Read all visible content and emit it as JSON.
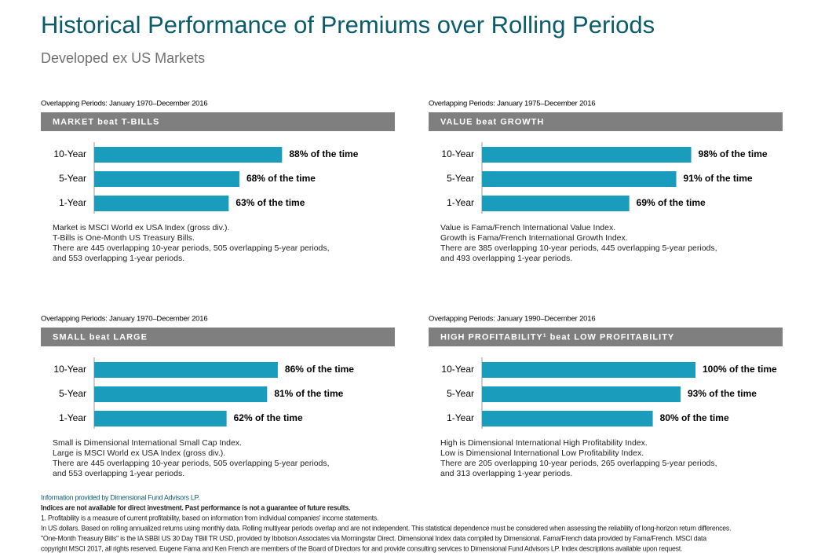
{
  "title": "Historical Performance of Premiums over Rolling Periods",
  "subtitle": "Developed ex US Markets",
  "chart_data": [
    {
      "type": "bar",
      "period": "Overlapping Periods: January 1970–December 2016",
      "title": "MARKET beat T-BILLS",
      "categories": [
        "10-Year",
        "5-Year",
        "1-Year"
      ],
      "values": [
        88,
        68,
        63
      ],
      "value_labels": [
        "88% of the time",
        "68% of the time",
        "63% of the time"
      ],
      "color": "#1a9dbd",
      "notes": [
        "Market is MSCI World ex USA Index (gross div.).",
        "T-Bills is One-Month US Treasury Bills.",
        "There are 445 overlapping 10-year periods, 505 overlapping 5-year periods,",
        "and 553 overlapping 1-year periods."
      ]
    },
    {
      "type": "bar",
      "period": "Overlapping Periods: January 1975–December 2016",
      "title": "VALUE beat GROWTH",
      "categories": [
        "10-Year",
        "5-Year",
        "1-Year"
      ],
      "values": [
        98,
        91,
        69
      ],
      "value_labels": [
        "98% of the time",
        "91% of the time",
        "69% of the time"
      ],
      "color": "#1a9dbd",
      "notes": [
        "Value is Fama/French International Value Index.",
        "Growth is Fama/French International Growth Index.",
        "There are 385 overlapping 10-year periods, 445 overlapping 5-year periods,",
        "and 493 overlapping 1-year periods."
      ]
    },
    {
      "type": "bar",
      "period": "Overlapping Periods: January 1970–December 2016",
      "title": "SMALL beat LARGE",
      "categories": [
        "10-Year",
        "5-Year",
        "1-Year"
      ],
      "values": [
        86,
        81,
        62
      ],
      "value_labels": [
        "86% of the time",
        "81% of the time",
        "62% of the time"
      ],
      "color": "#1a9dbd",
      "notes": [
        "Small is Dimensional International Small Cap Index.",
        "Large is MSCI World ex USA Index (gross div.).",
        "There are 445 overlapping 10-year periods, 505 overlapping 5-year periods,",
        "and 553 overlapping 1-year periods."
      ]
    },
    {
      "type": "bar",
      "period": "Overlapping Periods: January 1990–December 2016",
      "title": "HIGH PROFITABILITY¹ beat LOW PROFITABILITY",
      "categories": [
        "10-Year",
        "5-Year",
        "1-Year"
      ],
      "values": [
        100,
        93,
        80
      ],
      "value_labels": [
        "100% of the time",
        "93% of the time",
        "80% of the time"
      ],
      "color": "#1a9dbd",
      "notes": [
        "High is Dimensional International High Profitability Index.",
        "Low is Dimensional International Low Profitability Index.",
        "There are 205 overlapping 10-year periods, 265 overlapping 5-year periods,",
        "and 313 overlapping 1-year periods."
      ]
    }
  ],
  "footnotes": [
    "Information provided by Dimensional Fund Advisors LP.",
    "Indices are not available for direct investment. Past performance is not a guarantee of future results.",
    "1. Profitability is a measure of current profitability, based on information from individual companies' income statements.",
    "In US dollars. Based on rolling annualized returns using monthly data. Rolling multiyear periods overlap and are not independent. This statistical dependence must be considered when assessing the reliability of long-horizon return differences.",
    "\"One-Month Treasury Bills\" is the IA SBBI US 30 Day TBill TR USD, provided by Ibbotson Associates via Morningstar Direct. Dimensional Index data compiled by Dimensional. Fama/French data provided by Fama/French. MSCI data",
    "copyright MSCI 2017, all rights reserved. Eugene Fama and Ken French are members of the Board of Directors for and provide consulting services to Dimensional Fund Advisors LP. Index descriptions available upon request."
  ]
}
